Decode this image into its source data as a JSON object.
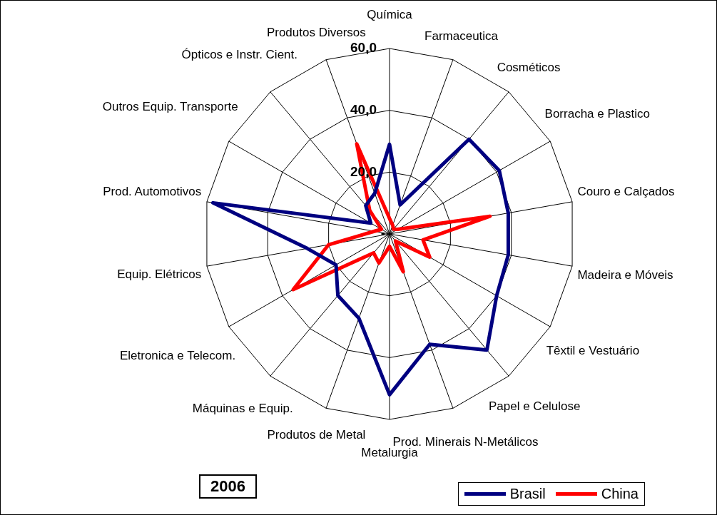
{
  "chart_data": {
    "type": "radar",
    "title": "2006",
    "categories": [
      "Química",
      "Farmaceutica",
      "Cosméticos",
      "Borracha e Plastico",
      "Couro e Calçados",
      "Madeira e Móveis",
      "Têxtil e Vestuário",
      "Papel e Celulose",
      "Prod. Minerais N-Metálicos",
      "Metalurgia",
      "Produtos de Metal",
      "Máquinas e Equip.",
      "Eletronica e Telecom.",
      "Equip. Elétricos",
      "Prod. Automotivos",
      "Outros Equip. Transporte",
      "Ópticos e Instr. Cient.",
      "Produtos Diversos"
    ],
    "series": [
      {
        "name": "Brasil",
        "color": "#000080",
        "values": [
          29,
          10,
          40,
          41,
          39,
          39,
          40,
          49,
          38,
          52,
          29,
          26,
          20,
          27,
          58,
          7,
          12,
          14
        ]
      },
      {
        "name": "China",
        "color": "#ff0000",
        "values": [
          5,
          3,
          2,
          3,
          33,
          11,
          15,
          3,
          13,
          4,
          10,
          8,
          36,
          20,
          5,
          3,
          10,
          31
        ]
      }
    ],
    "ylim": [
      0,
      60
    ],
    "yticks": [
      {
        "value": 0,
        "label": "-"
      },
      {
        "value": 20,
        "label": "20,0"
      },
      {
        "value": 40,
        "label": "40,0"
      },
      {
        "value": 60,
        "label": "60,0"
      }
    ],
    "grid": true,
    "legend": "bottom right",
    "marker": "none"
  }
}
